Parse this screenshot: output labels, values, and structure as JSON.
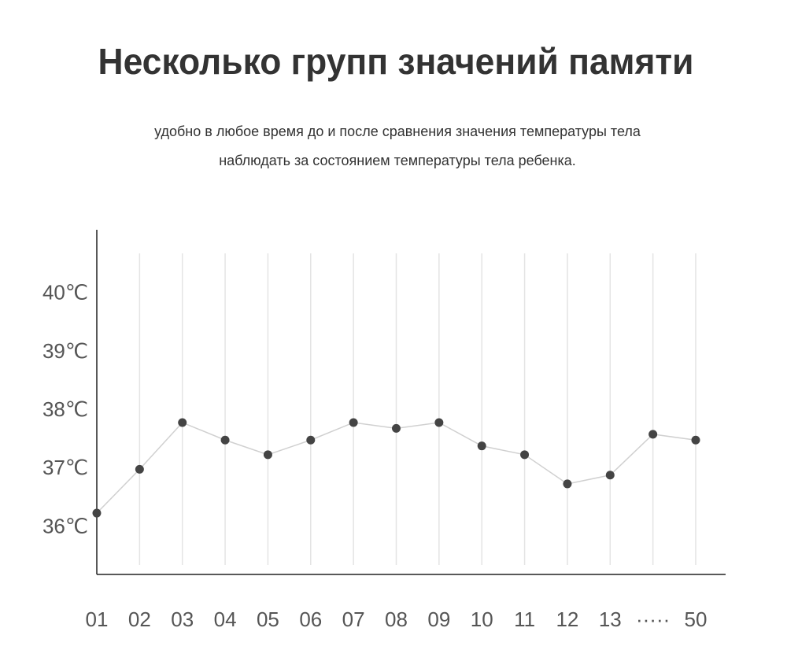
{
  "chart_data": {
    "type": "line",
    "title": "Несколько групп значений памяти",
    "subtitle": [
      "удобно в любое время до и после сравнения значения температуры тела",
      "наблюдать за состоянием температуры тела ребенка."
    ],
    "categories": [
      "01",
      "02",
      "03",
      "04",
      "05",
      "06",
      "07",
      "08",
      "09",
      "10",
      "11",
      "12",
      "13",
      "·····",
      "50"
    ],
    "series": [
      {
        "color": "#444444",
        "values": [
          36.25,
          37.0,
          37.8,
          37.5,
          37.25,
          37.5,
          37.8,
          37.7,
          37.8,
          37.4,
          37.25,
          36.75,
          36.9,
          37.6,
          37.5
        ]
      }
    ],
    "ylim": [
      35.2,
      41.1
    ],
    "yticks": [
      {
        "value": 36,
        "label": "36℃"
      },
      {
        "value": 37,
        "label": "37℃"
      },
      {
        "value": 38,
        "label": "38℃"
      },
      {
        "value": 39,
        "label": "39℃"
      },
      {
        "value": 40,
        "label": "40℃"
      }
    ],
    "grid": true
  }
}
